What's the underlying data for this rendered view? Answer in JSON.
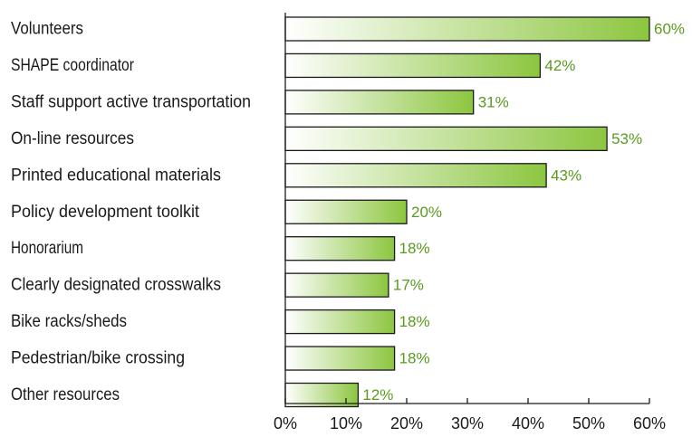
{
  "chart_data": {
    "type": "bar",
    "orientation": "horizontal",
    "categories": [
      "Volunteers",
      "SHAPE coordinator",
      "Staff support active transportation",
      "On-line resources",
      "Printed educational materials",
      "Policy development toolkit",
      "Honorarium",
      "Clearly designated crosswalks",
      "Bike racks/sheds",
      "Pedestrian/bike crossing",
      "Other resources"
    ],
    "values": [
      60,
      42,
      31,
      53,
      43,
      20,
      18,
      17,
      18,
      18,
      12
    ],
    "value_labels": [
      "60%",
      "42%",
      "31%",
      "53%",
      "43%",
      "20%",
      "18%",
      "17%",
      "18%",
      "18%",
      "12%"
    ],
    "xlim": [
      0,
      60
    ],
    "x_ticks": [
      0,
      10,
      20,
      30,
      40,
      50,
      60
    ],
    "x_tick_labels": [
      "0%",
      "10%",
      "20%",
      "30%",
      "40%",
      "50%",
      "60%"
    ],
    "grid": false,
    "colors": {
      "bar_start": "#ffffff",
      "bar_end": "#8cc63f",
      "value_label": "#5a9a1e",
      "axis": "#1a1a1a"
    }
  }
}
